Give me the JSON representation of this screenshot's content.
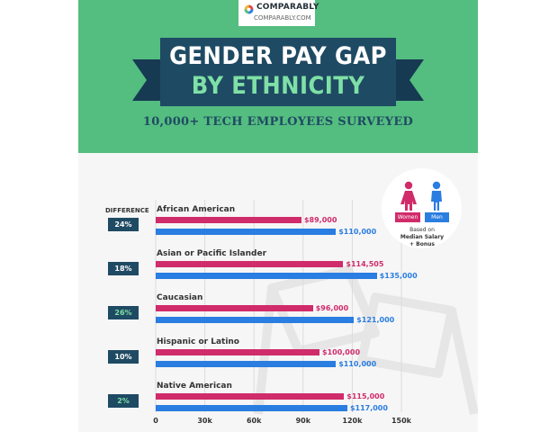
{
  "brand": {
    "name": "COMPARABLY",
    "url": "COMPARABLY.COM"
  },
  "title_line1": "GENDER PAY GAP",
  "title_line2": "BY ETHNICITY",
  "subtitle": "10,000+ TECH EMPLOYEES SURVEYED",
  "difference_label": "DIFFERENCE",
  "legend": {
    "women": "Women",
    "men": "Men",
    "note_line1": "Based on",
    "note_line2": "Median Salary",
    "note_line3": "+ Bonus",
    "women_color": "#d02b6a",
    "men_color": "#2a7de1"
  },
  "chart_data": {
    "type": "bar",
    "orientation": "horizontal",
    "title": "GENDER PAY GAP BY ETHNICITY",
    "subtitle": "10,000+ TECH EMPLOYEES SURVEYED",
    "categories": [
      "African American",
      "Asian or Pacific Islander",
      "Caucasian",
      "Hispanic or Latino",
      "Native American"
    ],
    "series": [
      {
        "name": "Women",
        "color": "#d02b6a",
        "values": [
          89000,
          114505,
          96000,
          100000,
          115000
        ],
        "labels": [
          "$89,000",
          "$114,505",
          "$96,000",
          "$100,000",
          "$115,000"
        ]
      },
      {
        "name": "Men",
        "color": "#2a7de1",
        "values": [
          110000,
          135000,
          121000,
          110000,
          117000
        ],
        "labels": [
          "$110,000",
          "$135,000",
          "$121,000",
          "$110,000",
          "$117,000"
        ]
      }
    ],
    "differences": [
      "24%",
      "18%",
      "26%",
      "10%",
      "2%"
    ],
    "difference_colors": [
      "#ffffff",
      "#ffffff",
      "#7fe0a6",
      "#ffffff",
      "#7fe0a6"
    ],
    "xlim": [
      0,
      150000
    ],
    "xticks": [
      0,
      30000,
      60000,
      90000,
      120000,
      150000
    ],
    "xtick_labels": [
      "0",
      "30k",
      "60k",
      "90k",
      "120k",
      "150k"
    ],
    "grid": true,
    "legend_position": "top-right"
  }
}
